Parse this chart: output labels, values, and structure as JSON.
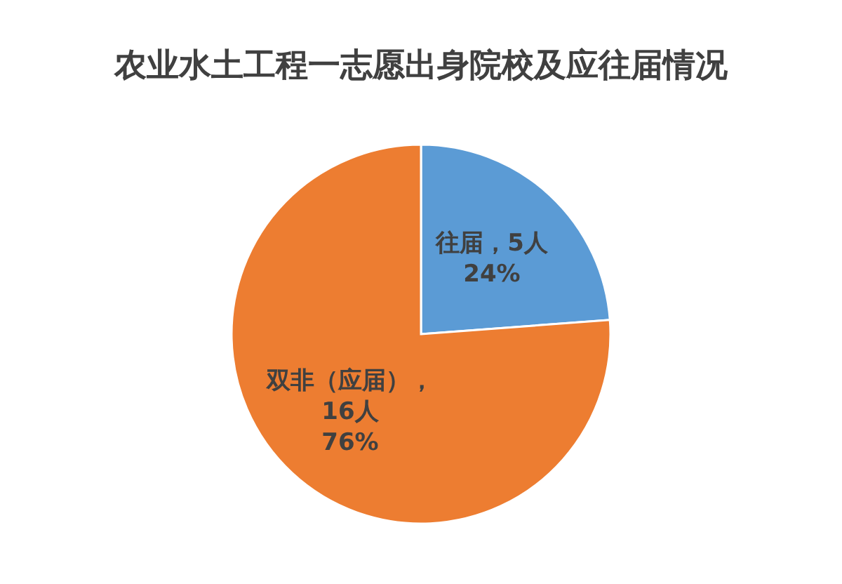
{
  "chart_data": {
    "type": "pie",
    "title": "农业水土工程一志愿出身院校及应往届情况",
    "categories": [
      "往届",
      "双非（应届）"
    ],
    "values": [
      5,
      16
    ],
    "colors": [
      "#5b9bd5",
      "#ed7d31"
    ],
    "value_labels": [
      "，5人\n24%",
      "，\n16人\n76%"
    ]
  }
}
